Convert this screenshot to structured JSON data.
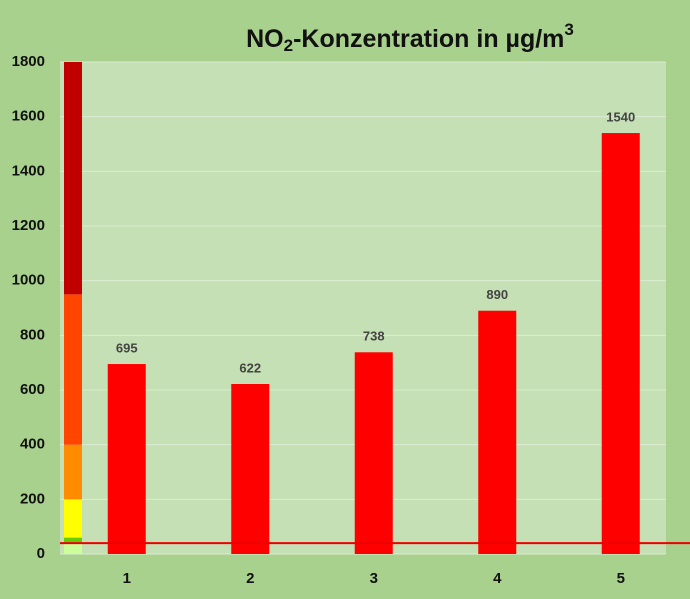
{
  "chart_data": {
    "type": "bar",
    "title": [
      "NO",
      "2",
      "-Konzentration  in µg/m",
      "3"
    ],
    "categories": [
      "1",
      "2",
      "3",
      "4",
      "5"
    ],
    "values": [
      695,
      622,
      738,
      890,
      1540
    ],
    "color": "#ff0000",
    "ylim": [
      0,
      1800
    ],
    "yticks": [
      0,
      200,
      400,
      600,
      800,
      1000,
      1200,
      1400,
      1600,
      1800
    ],
    "grid": true,
    "reference_line": {
      "value": 40,
      "color": "#ee0000"
    },
    "scale_bands": [
      {
        "from": 0,
        "to": 40,
        "color": "#ccff99"
      },
      {
        "from": 40,
        "to": 60,
        "color": "#66cc00"
      },
      {
        "from": 60,
        "to": 200,
        "color": "#ffff00"
      },
      {
        "from": 200,
        "to": 400,
        "color": "#ff8c00"
      },
      {
        "from": 400,
        "to": 950,
        "color": "#ff4500"
      },
      {
        "from": 950,
        "to": 1800,
        "color": "#c00000"
      }
    ]
  }
}
